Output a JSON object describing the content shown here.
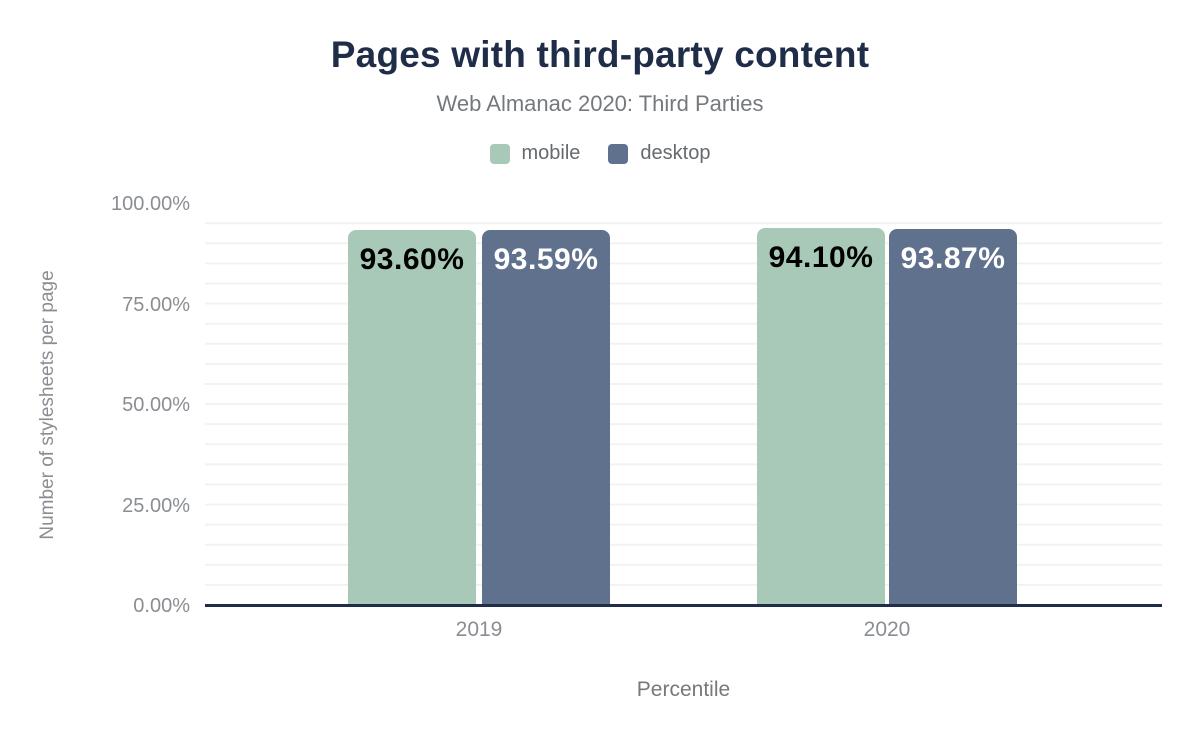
{
  "title": "Pages with third-party content",
  "subtitle": "Web Almanac 2020: Third Parties",
  "legend": {
    "items": [
      {
        "label": "mobile",
        "color": "#a8c9b7"
      },
      {
        "label": "desktop",
        "color": "#60718e"
      }
    ]
  },
  "chart_data": {
    "type": "bar",
    "title": "Pages with third-party content",
    "subtitle": "Web Almanac 2020: Third Parties",
    "categories": [
      "2019",
      "2020"
    ],
    "series": [
      {
        "name": "mobile",
        "color": "#a8c9b7",
        "values": [
          93.6,
          94.1
        ],
        "data_labels": [
          "93.60%",
          "94.10%"
        ],
        "data_label_color": "#000000"
      },
      {
        "name": "desktop",
        "color": "#60718e",
        "values": [
          93.59,
          93.87
        ],
        "data_labels": [
          "93.59%",
          "93.87%"
        ],
        "data_label_color": "#ffffff"
      }
    ],
    "xlabel": "Percentile",
    "ylabel": "Number of stylesheets per page",
    "ylim": [
      0,
      100
    ],
    "ytick_labels": [
      "100.00%",
      "75.00%",
      "50.00%",
      "25.00%",
      "0.00%"
    ],
    "ytick_values": [
      100,
      75,
      50,
      25,
      0
    ],
    "grid": "horizontal minor gridlines every 5%",
    "legend_position": "top-center",
    "axis_line_color": "#1f2d49",
    "gridline_color": "#f2f2f2"
  },
  "colors": {
    "title": "#1f2d49",
    "subtitle": "#75797e",
    "axis_text": "#8a8e93",
    "background": "#ffffff"
  }
}
